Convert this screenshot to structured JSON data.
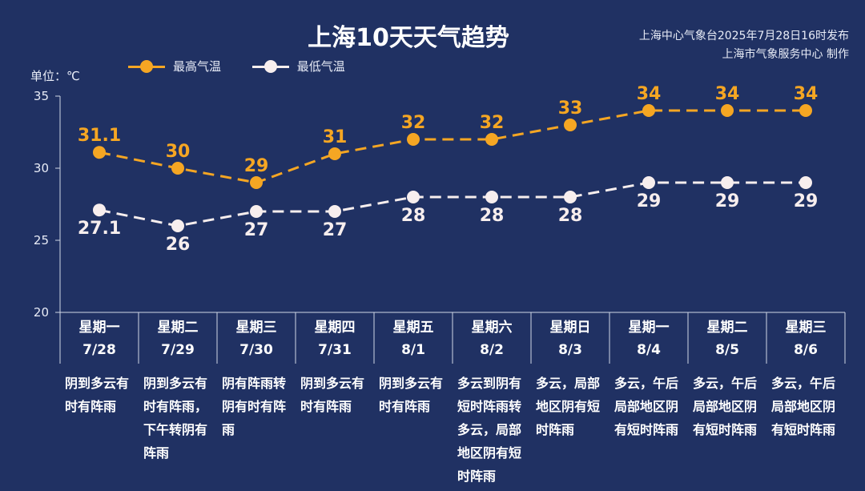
{
  "title": "上海10天天气趋势",
  "publisher": {
    "line1": "上海中心气象台2025年7月28日16时发布",
    "line2": "上海市气象服务中心 制作"
  },
  "unit": "单位：℃",
  "legend": {
    "high": "最高气温",
    "low": "最低气温"
  },
  "colors": {
    "background": "#203163",
    "high": "#F5A623",
    "low": "#F7EEEE"
  },
  "chart_data": {
    "type": "line",
    "ylim": [
      20,
      35
    ],
    "yticks": [
      20,
      25,
      30,
      35
    ],
    "grid": false,
    "legend_position": "top-left",
    "categories": [
      {
        "day": "星期一",
        "date": "7/28"
      },
      {
        "day": "星期二",
        "date": "7/29"
      },
      {
        "day": "星期三",
        "date": "7/30"
      },
      {
        "day": "星期四",
        "date": "7/31"
      },
      {
        "day": "星期五",
        "date": "8/1"
      },
      {
        "day": "星期六",
        "date": "8/2"
      },
      {
        "day": "星期日",
        "date": "8/3"
      },
      {
        "day": "星期一",
        "date": "8/4"
      },
      {
        "day": "星期二",
        "date": "8/5"
      },
      {
        "day": "星期三",
        "date": "8/6"
      }
    ],
    "series": [
      {
        "name": "最高气温",
        "values": [
          31.1,
          30,
          29,
          31,
          32,
          32,
          33,
          34,
          34,
          34
        ]
      },
      {
        "name": "最低气温",
        "values": [
          27.1,
          26,
          27,
          27,
          28,
          28,
          28,
          29,
          29,
          29
        ]
      }
    ],
    "descriptions": [
      "阴到多云有时有阵雨",
      "阴到多云有时有阵雨，下午转阴有阵雨",
      "阴有阵雨转阴有时有阵雨",
      "阴到多云有时有阵雨",
      "阴到多云有时有阵雨",
      "多云到阴有短时阵雨转多云，局部地区阴有短时阵雨",
      "多云，局部地区阴有短时阵雨",
      "多云，午后局部地区阴有短时阵雨",
      "多云，午后局部地区阴有短时阵雨",
      "多云，午后局部地区阴有短时阵雨"
    ]
  }
}
